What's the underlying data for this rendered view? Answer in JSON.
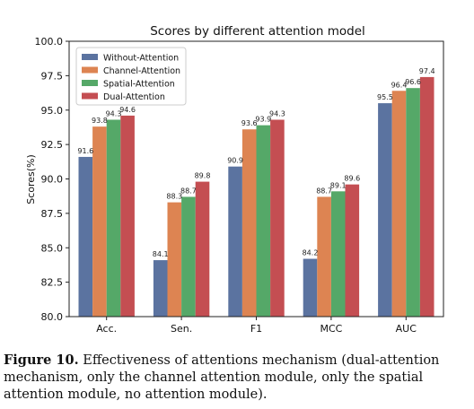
{
  "chart_data": {
    "type": "bar",
    "title": "Scores by different attention model",
    "xlabel": "",
    "ylabel": "Scores(%)",
    "ylim": [
      80.0,
      100.0
    ],
    "yticks": [
      "80.0",
      "82.5",
      "85.0",
      "87.5",
      "90.0",
      "92.5",
      "95.0",
      "97.5",
      "100.0"
    ],
    "categories": [
      "Acc.",
      "Sen.",
      "F1",
      "MCC",
      "AUC"
    ],
    "legend_position": "top-left",
    "grid": false,
    "series": [
      {
        "name": "Without-Attention",
        "color": "#5b73a0",
        "values": [
          91.6,
          84.1,
          90.9,
          84.2,
          95.5
        ]
      },
      {
        "name": "Channel-Attention",
        "color": "#dd8452",
        "values": [
          93.8,
          88.3,
          93.6,
          88.7,
          96.4
        ]
      },
      {
        "name": "Spatial-Attention",
        "color": "#55a868",
        "values": [
          94.3,
          88.7,
          93.9,
          89.1,
          96.6
        ]
      },
      {
        "name": "Dual-Attention",
        "color": "#c44e52",
        "values": [
          94.6,
          89.8,
          94.3,
          89.6,
          97.4
        ]
      }
    ]
  },
  "caption": {
    "label": "Figure 10.",
    "text": "Effectiveness of attentions mechanism (dual-attention mechanism, only the channel attention module, only the spatial attention module, no attention module)."
  }
}
